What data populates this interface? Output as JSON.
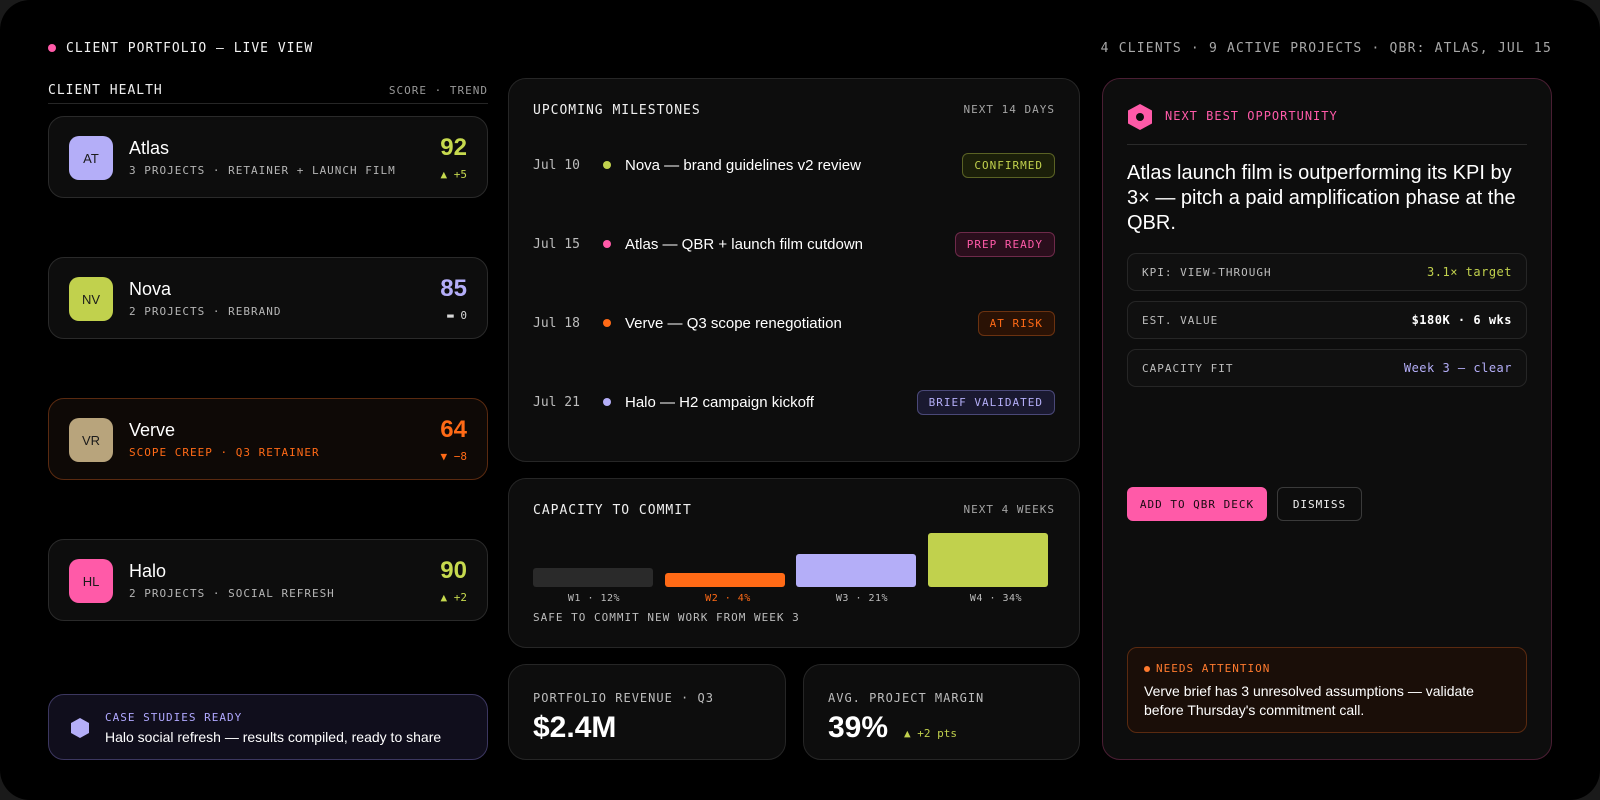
{
  "header": {
    "title": "CLIENT PORTFOLIO — LIVE VIEW",
    "meta": "4 CLIENTS · 9 ACTIVE PROJECTS · QBR: ATLAS, JUL 15"
  },
  "client_health": {
    "title": "CLIENT HEALTH",
    "subtitle": "SCORE · TREND",
    "clients": [
      {
        "initials": "AT",
        "name": "Atlas",
        "detail": "3 PROJECTS · RETAINER + LAUNCH FILM",
        "score": "92",
        "trend": "▲ +5",
        "avatar_color": "#b4aef8",
        "score_color": "#c6d94e",
        "trend_color": "#c6d94e"
      },
      {
        "initials": "NV",
        "name": "Nova",
        "detail": "2 PROJECTS · REBRAND",
        "score": "85",
        "trend": "▬ 0",
        "avatar_color": "#c1d14d",
        "score_color": "#b4aef8",
        "trend_color": "#d8d8d8"
      },
      {
        "initials": "VR",
        "name": "Verve",
        "detail": "SCOPE CREEP · Q3 RETAINER",
        "score": "64",
        "trend": "▼ −8",
        "avatar_color": "#b8a47c",
        "score_color": "#ff6a16",
        "trend_color": "#ff6a16"
      },
      {
        "initials": "HL",
        "name": "Halo",
        "detail": "2 PROJECTS · SOCIAL REFRESH",
        "score": "90",
        "trend": "▲ +2",
        "avatar_color": "#ff5aa8",
        "score_color": "#c6d94e",
        "trend_color": "#c6d94e"
      }
    ]
  },
  "case_studies": {
    "title": "CASE STUDIES READY",
    "text": "Halo social refresh — results compiled, ready to share"
  },
  "milestones": {
    "title": "UPCOMING MILESTONES",
    "meta": "NEXT 14 DAYS",
    "items": [
      {
        "date": "Jul 10",
        "label": "Nova — brand guidelines v2 review",
        "badge": "CONFIRMED",
        "dot": "#c1d14d",
        "badge_color": "#c1d14d",
        "badge_bg": "#1b1f09",
        "badge_border": "#5a6224"
      },
      {
        "date": "Jul 15",
        "label": "Atlas — QBR + launch film cutdown",
        "badge": "PREP READY",
        "dot": "#ff5aa8",
        "badge_color": "#ff5aa8",
        "badge_bg": "#2a0e1c",
        "badge_border": "#6e2a4a"
      },
      {
        "date": "Jul 18",
        "label": "Verve — Q3 scope renegotiation",
        "badge": "AT RISK",
        "dot": "#ff6a16",
        "badge_color": "#ff6a16",
        "badge_bg": "#2a1205",
        "badge_border": "#6b3210"
      },
      {
        "date": "Jul 21",
        "label": "Halo — H2 campaign kickoff",
        "badge": "BRIEF VALIDATED",
        "dot": "#b4aef8",
        "badge_color": "#b4aef8",
        "badge_bg": "#1a1930",
        "badge_border": "#4a4878"
      }
    ]
  },
  "capacity": {
    "title": "CAPACITY TO COMMIT",
    "meta": "NEXT 4 WEEKS",
    "note": "SAFE TO COMMIT NEW WORK FROM WEEK 3",
    "weeks": [
      {
        "label": "W1 · 12%",
        "pct": 12,
        "color": "#2a2a2a",
        "label_color": "#bdbdbd"
      },
      {
        "label": "W2 · 4%",
        "pct": 4,
        "color": "#ff6a16",
        "label_color": "#ff6a16"
      },
      {
        "label": "W3 · 21%",
        "pct": 21,
        "color": "#b4aef8",
        "label_color": "#bdbdbd"
      },
      {
        "label": "W4 · 34%",
        "pct": 34,
        "color": "#c1d14d",
        "label_color": "#bdbdbd"
      }
    ]
  },
  "kpis": {
    "revenue": {
      "label": "PORTFOLIO REVENUE · Q3",
      "value": "$2.4M"
    },
    "margin": {
      "label": "AVG. PROJECT MARGIN",
      "value": "39%",
      "delta": "▲ +2 pts"
    }
  },
  "opportunity": {
    "label": "NEXT BEST OPPORTUNITY",
    "text": "Atlas launch film is outperforming its KPI by 3× — pitch a paid amplification phase at the QBR.",
    "rows": [
      {
        "key": "KPI: VIEW-THROUGH",
        "value": "3.1× target",
        "color": "#c1d14d"
      },
      {
        "key": "EST. VALUE",
        "value": "$180K · 6 wks",
        "color": "#ffffff"
      },
      {
        "key": "CAPACITY FIT",
        "value": "Week 3 — clear",
        "color": "#b4aef8"
      }
    ],
    "primary_label": "ADD TO QBR DECK",
    "secondary_label": "DISMISS"
  },
  "attention": {
    "title": "NEEDS ATTENTION",
    "text": "Verve brief has 3 unresolved assumptions — validate before Thursday's commitment call."
  }
}
